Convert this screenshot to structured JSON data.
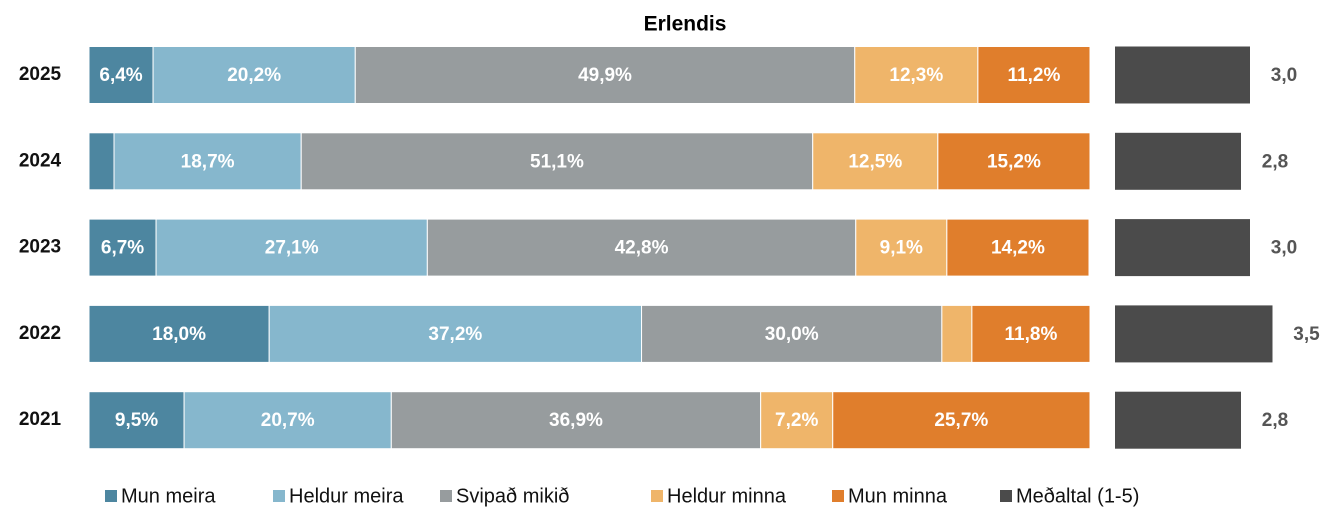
{
  "chart_data": {
    "type": "stacked-barh",
    "title": "Erlendis",
    "categories": [
      "2025",
      "2024",
      "2023",
      "2022",
      "2021"
    ],
    "xlim": [
      0,
      100
    ],
    "series": [
      {
        "name": "Mun meira",
        "color": "#4d86a0",
        "values": [
          6.4,
          2.5,
          6.7,
          18.0,
          9.5
        ],
        "value_labels": [
          "6,4%",
          null,
          "6,7%",
          "18,0%",
          "9,5%"
        ]
      },
      {
        "name": "Heldur meira",
        "color": "#86b7cd",
        "values": [
          20.2,
          18.7,
          27.1,
          37.2,
          20.7
        ],
        "value_labels": [
          "20,2%",
          "18,7%",
          "27,1%",
          "37,2%",
          "20,7%"
        ]
      },
      {
        "name": "Svipað mikið",
        "color": "#979c9e",
        "values": [
          49.9,
          51.1,
          42.8,
          30.0,
          36.9
        ],
        "value_labels": [
          "49,9%",
          "51,1%",
          "42,8%",
          "30,0%",
          "36,9%"
        ]
      },
      {
        "name": "Heldur minna",
        "color": "#efb56a",
        "values": [
          12.3,
          12.5,
          9.1,
          3.0,
          7.2
        ],
        "value_labels": [
          "12,3%",
          "12,5%",
          "9,1%",
          null,
          "7,2%"
        ]
      },
      {
        "name": "Mun minna",
        "color": "#e07e2c",
        "values": [
          11.2,
          15.2,
          14.2,
          11.8,
          25.7
        ],
        "value_labels": [
          "11,2%",
          "15,2%",
          "14,2%",
          "11,8%",
          "25,7%"
        ]
      }
    ],
    "average": {
      "name": "Meðaltal (1-5)",
      "color": "#4b4b4b",
      "values": [
        3.0,
        2.8,
        3.0,
        3.5,
        2.8
      ],
      "value_labels": [
        "3,0",
        "2,8",
        "3,0",
        "3,5",
        "2,8"
      ]
    }
  }
}
